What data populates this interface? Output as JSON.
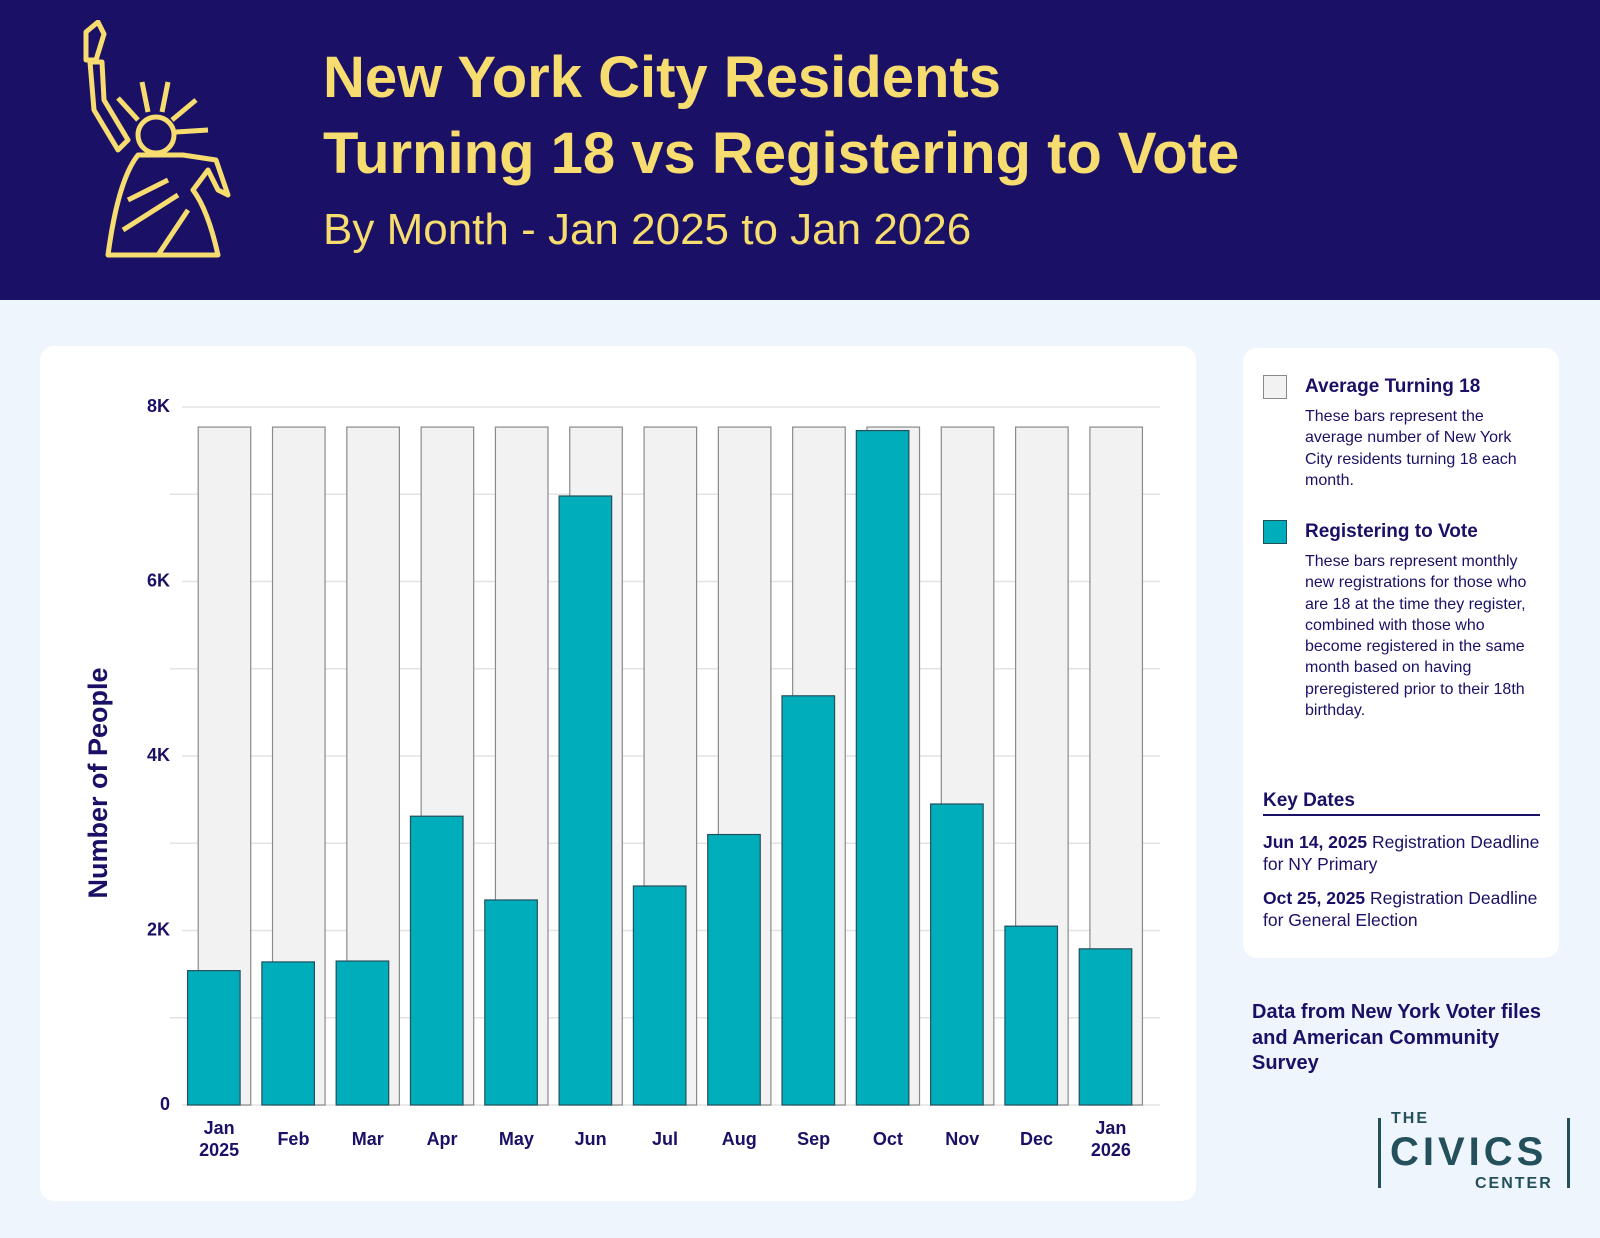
{
  "chart_data": {
    "type": "bar",
    "title": [
      "New York City Residents",
      "Turning 18 vs Registering to Vote"
    ],
    "subtitle": "By Month - Jan 2025 to Jan 2026",
    "y_label": "Number of People",
    "categories": [
      "Jan 2025",
      "Feb",
      "Mar",
      "Apr",
      "May",
      "Jun",
      "Jul",
      "Aug",
      "Sep",
      "Oct",
      "Nov",
      "Dec",
      "Jan 2026"
    ],
    "series": [
      {
        "name": "Average Turning 18",
        "color": "#f2f2f2",
        "stroke": "#8a8a8a",
        "description": "These bars represent the average number of New York City residents turning 18 each month.",
        "values": [
          7770,
          7770,
          7770,
          7770,
          7770,
          7770,
          7770,
          7770,
          7770,
          7770,
          7770,
          7770,
          7770
        ]
      },
      {
        "name": "Registering to Vote",
        "color": "#00adbb",
        "stroke": "#24505c",
        "description": "These bars represent monthly new registrations for those who are 18 at the time they register, combined with those who become registered in the same month based on having preregistered prior to their 18th birthday.",
        "values": [
          1540,
          1640,
          1650,
          3310,
          2350,
          6980,
          2510,
          3100,
          4690,
          7730,
          3450,
          2050,
          1790
        ]
      }
    ],
    "ylim": [
      0,
      8000
    ],
    "yticks": [
      0,
      {
        "value": 2000,
        "label": "2K"
      },
      {
        "value": 4000,
        "label": "4K"
      },
      {
        "value": 6000,
        "label": "6K"
      },
      {
        "value": 8000,
        "label": "8K"
      }
    ],
    "minor_yticks": [
      1000,
      3000,
      5000,
      7000
    ],
    "grid": true,
    "key_dates_title": "Key Dates",
    "key_dates": [
      {
        "date": "Jun 14, 2025",
        "text": "Registration Deadline for NY Primary"
      },
      {
        "date": "Oct 25, 2025",
        "text": "Registration Deadline for General Election"
      }
    ],
    "source": "Data from New York Voter files and American Community Survey",
    "logo": [
      "THE",
      "CIVICS",
      "CENTER"
    ]
  }
}
